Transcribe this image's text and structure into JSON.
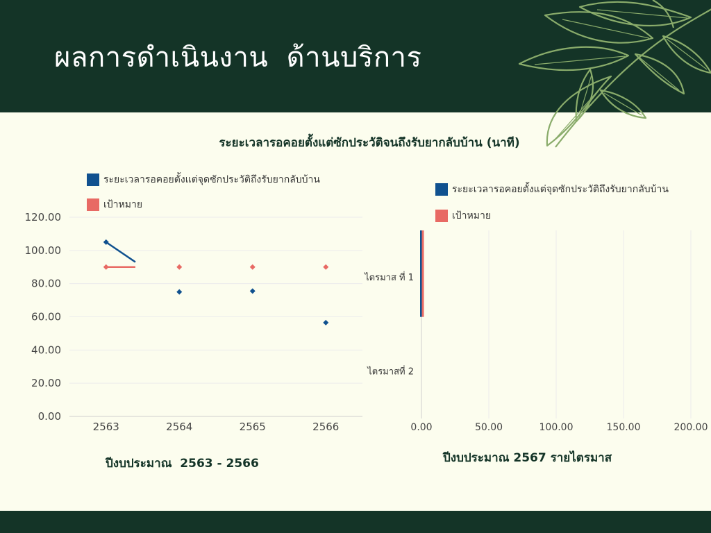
{
  "slide": {
    "title": "ผลการดำเนินงาน  ด้านบริการ",
    "chart_title": "ระยะเวลารอคอยตั้งแต่ซักประวัติจนถึงรับยากลับบ้าน (นาที)"
  },
  "colors": {
    "header_bg": "#143427",
    "page_bg": "#fcfdee",
    "series_wait": "#10518f",
    "series_target": "#e86a64",
    "leaf": "#8aac6b"
  },
  "icons": [
    "leaf-branch-icon"
  ],
  "chart_data": [
    {
      "type": "line",
      "categories": [
        "2563",
        "2564",
        "2565",
        "2566"
      ],
      "series": [
        {
          "name": "ระยะเวลารอคอยตั้งแต่จุดซักประวัติถึงรับยากลับบ้าน",
          "values": [
            105,
            75,
            75.5,
            56.5
          ]
        },
        {
          "name": "เป้าหมาย",
          "values": [
            90,
            90,
            90,
            90
          ]
        }
      ],
      "ylim": [
        0,
        120
      ],
      "yticks": [
        "0.00",
        "20.00",
        "40.00",
        "60.00",
        "80.00",
        "100.00",
        "120.00"
      ],
      "xlabel": "ปีงบประมาณ  2563 - 2566",
      "ylabel": "",
      "grid": true,
      "legend": "top-left"
    },
    {
      "type": "bar",
      "orientation": "horizontal",
      "categories": [
        "ไตรมาส ที่ 1",
        "ไตรมาสที่ 2"
      ],
      "series": [
        {
          "name": "ระยะเวลารอคอยตั้งแต่จุดซักประวัติถึงรับยากลับบ้าน",
          "values": [
            0,
            0
          ]
        },
        {
          "name": "เป้าหมาย",
          "values": [
            0,
            0
          ]
        }
      ],
      "xlim": [
        0,
        200
      ],
      "xticks": [
        "0.00",
        "50.00",
        "100.00",
        "150.00",
        "200.00"
      ],
      "xlabel": "ปีงบประมาณ 2567 รายไตรมาส",
      "ylabel": "",
      "grid": true,
      "legend": "top-left"
    }
  ]
}
